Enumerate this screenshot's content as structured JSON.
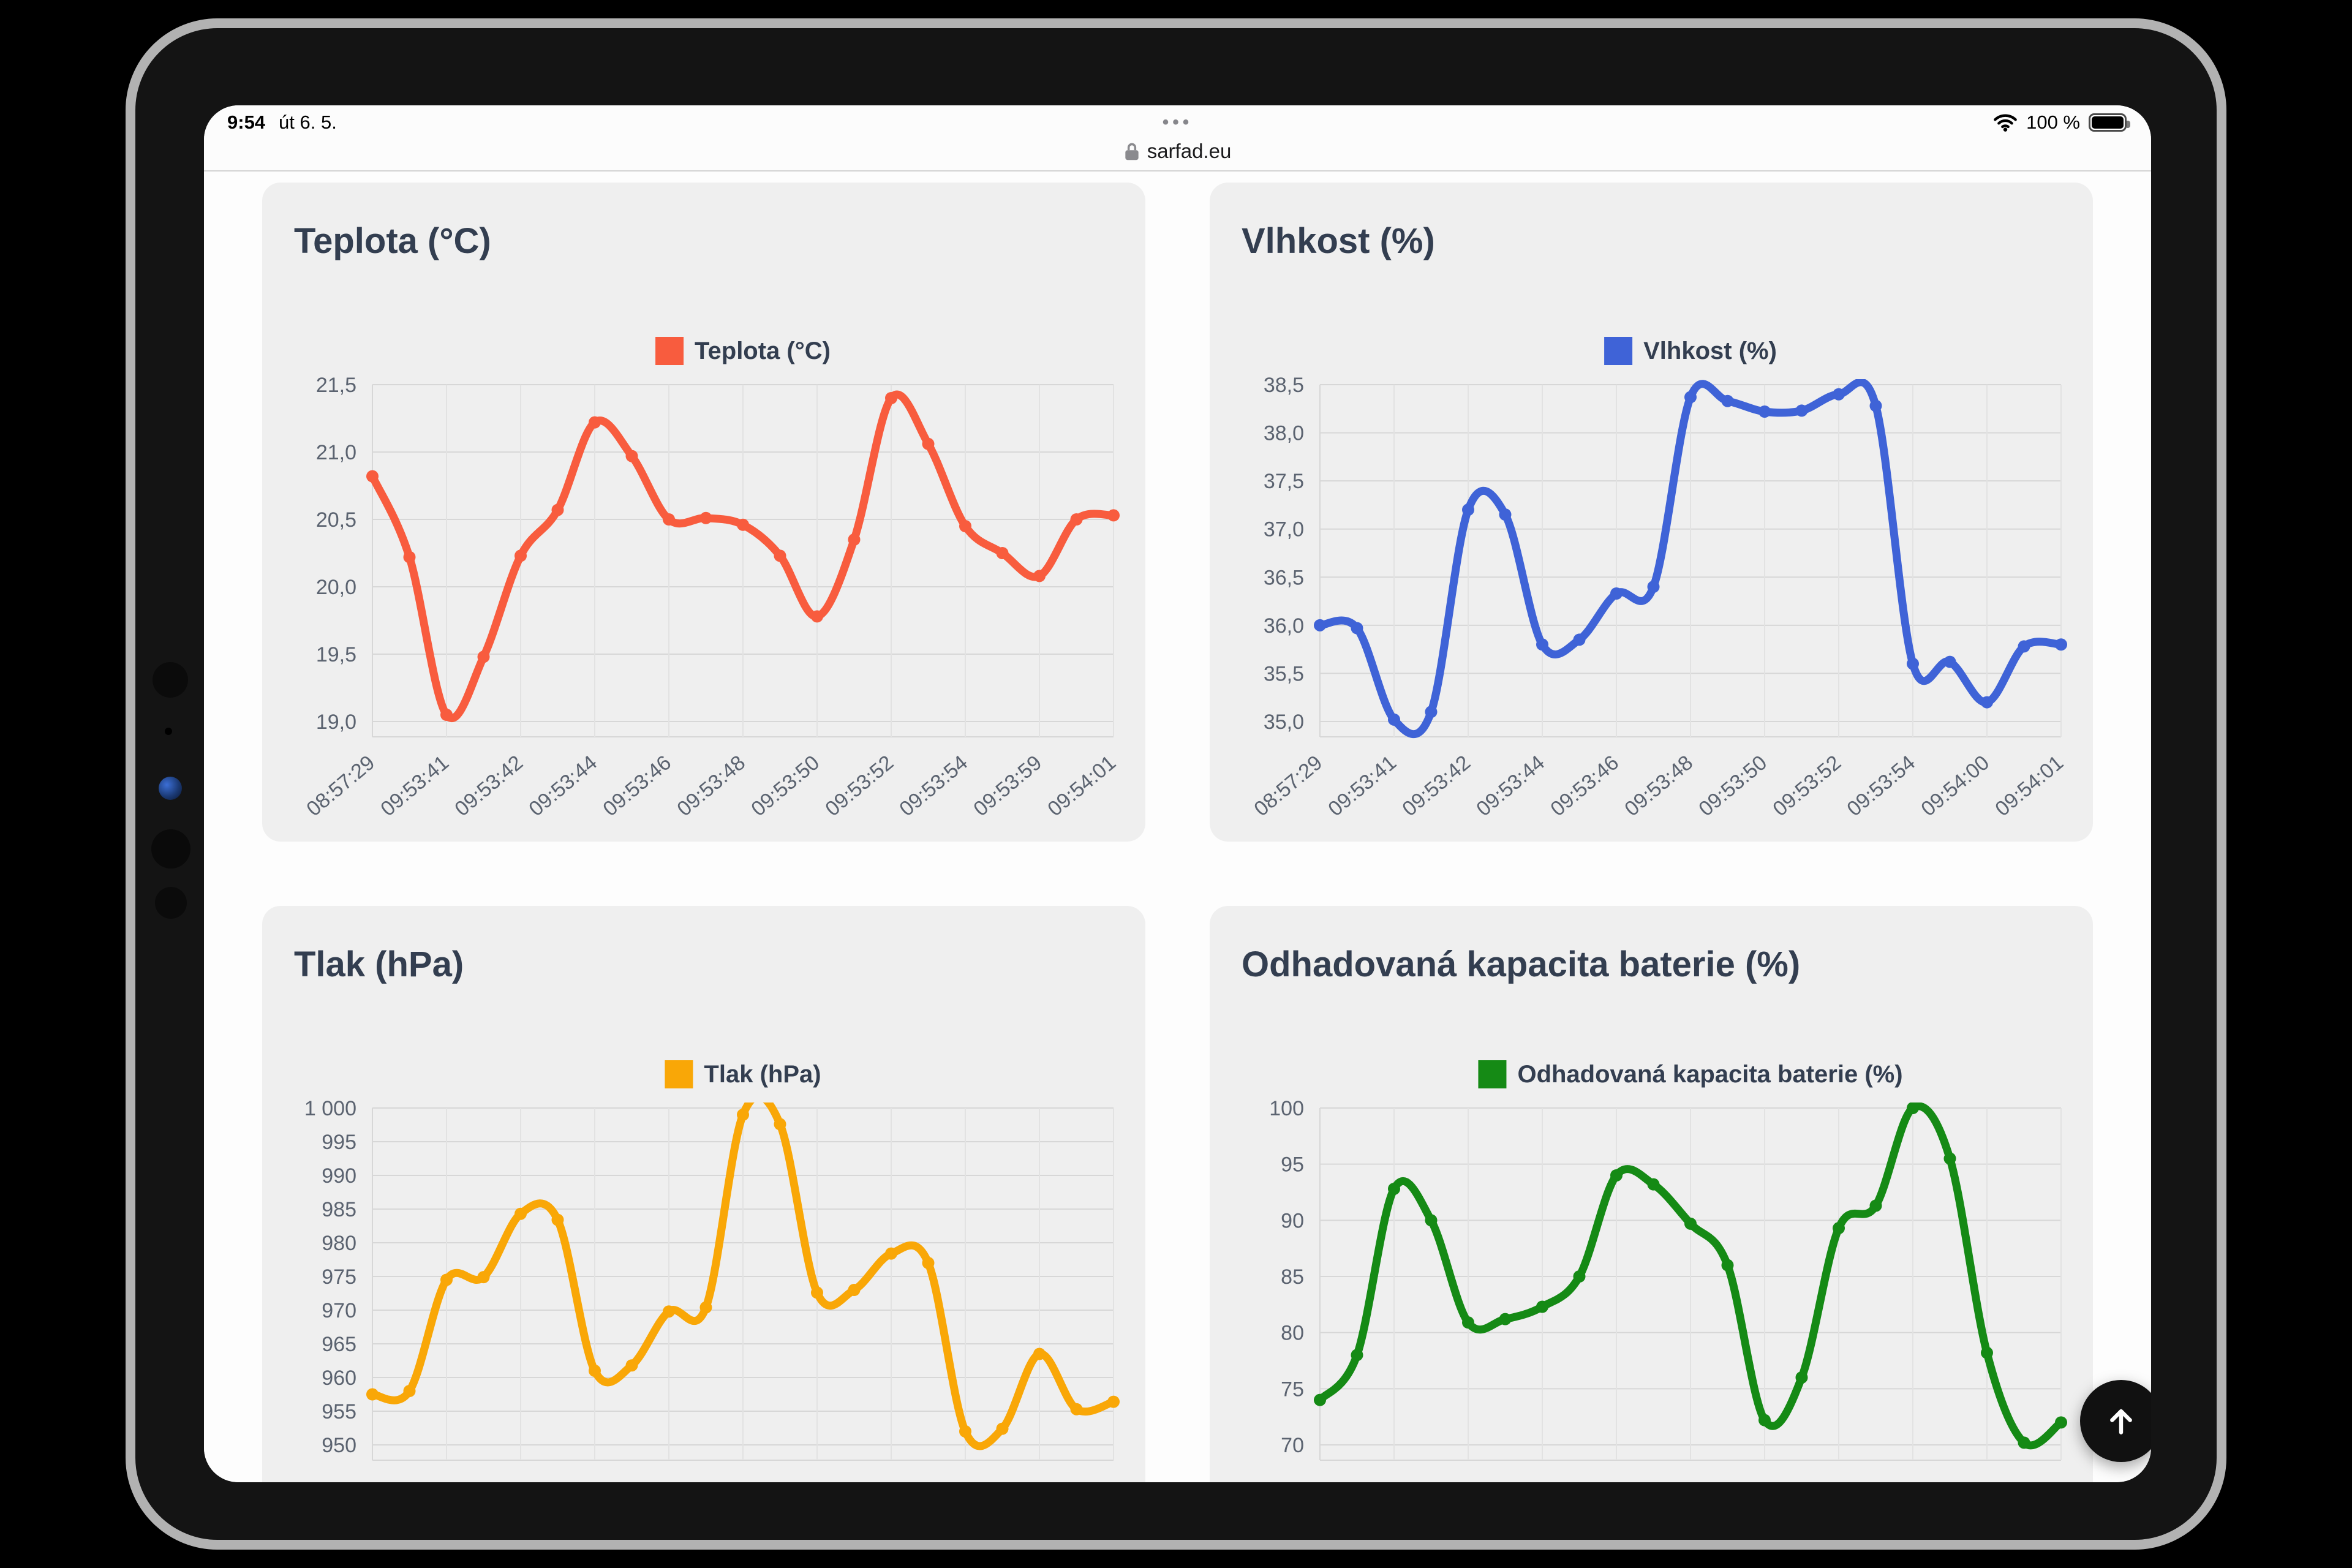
{
  "status": {
    "time": "9:54",
    "date": "út 6. 5.",
    "page_menu": "•••",
    "url": "sarfad.eu",
    "battery_level": "100 %"
  },
  "colors": {
    "temperature": "#f85c3e",
    "humidity": "#3f63d7",
    "pressure": "#f9a707",
    "battery": "#158a15",
    "title_text": "#333e50",
    "axis_text": "#5b6370",
    "grid_line": "#d7d7d7",
    "fab_bg": "#111111"
  },
  "chart_data": [
    {
      "type": "line",
      "title": "Teplota (°C)",
      "legend": "Teplota (°C)",
      "color": "#f85c3e",
      "y_min": 19.0,
      "y_max": 21.5,
      "y_step": 0.5,
      "y_ticks": [
        "21,5",
        "21,0",
        "20,5",
        "20,0",
        "19,5",
        "19,0"
      ],
      "x_labels": [
        "08:57:29",
        "09:53:41",
        "09:53:42",
        "09:53:44",
        "09:53:46",
        "09:53:48",
        "09:53:50",
        "09:53:52",
        "09:53:54",
        "09:53:59",
        "09:54:01"
      ],
      "values": [
        20.82,
        20.22,
        19.05,
        19.48,
        20.23,
        20.57,
        21.22,
        20.97,
        20.5,
        20.51,
        20.46,
        20.23,
        19.78,
        20.35,
        21.4,
        21.06,
        20.45,
        20.25,
        20.08,
        20.5,
        20.53
      ]
    },
    {
      "type": "line",
      "title": "Vlhkost (%)",
      "legend": "Vlhkost (%)",
      "color": "#3f63d7",
      "y_min": 35.0,
      "y_max": 38.5,
      "y_step": 0.5,
      "y_ticks": [
        "38,5",
        "38,0",
        "37,5",
        "37,0",
        "36,5",
        "36,0",
        "35,5",
        "35,0"
      ],
      "x_labels": [
        "08:57:29",
        "09:53:41",
        "09:53:42",
        "09:53:44",
        "09:53:46",
        "09:53:48",
        "09:53:50",
        "09:53:52",
        "09:53:54",
        "09:54:00",
        "09:54:01"
      ],
      "values": [
        36.0,
        35.97,
        35.02,
        35.1,
        37.2,
        37.15,
        35.8,
        35.85,
        36.33,
        36.4,
        38.37,
        38.33,
        38.22,
        38.23,
        38.4,
        38.28,
        35.6,
        35.62,
        35.2,
        35.78,
        35.8
      ]
    },
    {
      "type": "line",
      "title": "Tlak (hPa)",
      "legend": "Tlak (hPa)",
      "color": "#f9a707",
      "y_min": 950,
      "y_max": 1000,
      "y_step": 5,
      "y_ticks": [
        "1 000",
        "995",
        "990",
        "985",
        "980",
        "975",
        "970",
        "965",
        "960",
        "955",
        "950"
      ],
      "x_labels": [],
      "values": [
        957.5,
        958,
        974.5,
        974.9,
        984.3,
        983.4,
        961,
        961.8,
        969.8,
        970.4,
        999,
        997.6,
        972.6,
        973,
        978.4,
        977,
        952,
        952.4,
        963.5,
        955.3,
        956.4
      ]
    },
    {
      "type": "line",
      "title": "Odhadovaná kapacita baterie (%)",
      "legend": "Odhadovaná kapacita baterie (%)",
      "color": "#158a15",
      "y_min": 70,
      "y_max": 100,
      "y_step": 5,
      "y_ticks": [
        "100",
        "95",
        "90",
        "85",
        "80",
        "75",
        "70"
      ],
      "x_labels": [],
      "values": [
        74,
        78,
        92.8,
        90,
        80.9,
        81.2,
        82.3,
        85,
        94,
        93.2,
        89.7,
        86,
        72.2,
        76,
        89.3,
        91.3,
        100,
        95.5,
        78.2,
        70.2,
        72
      ]
    }
  ]
}
